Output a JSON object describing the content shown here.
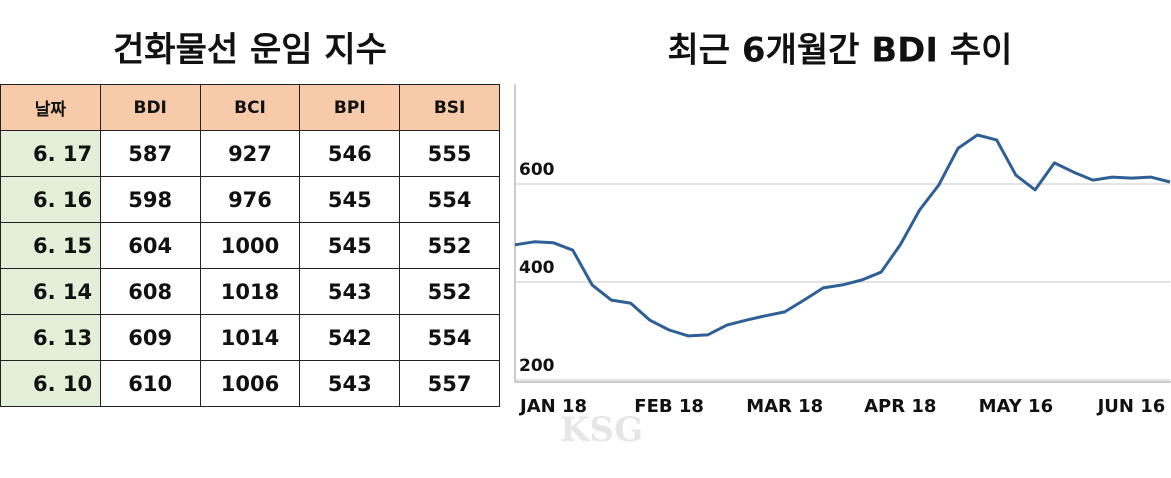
{
  "table": {
    "title": "건화물선 운임 지수",
    "header": [
      "날짜",
      "BDI",
      "BCI",
      "BPI",
      "BSI"
    ],
    "rows": [
      [
        "6. 17",
        "587",
        "927",
        "546",
        "555"
      ],
      [
        "6. 16",
        "598",
        "976",
        "545",
        "554"
      ],
      [
        "6. 15",
        "604",
        "1000",
        "545",
        "552"
      ],
      [
        "6. 14",
        "608",
        "1018",
        "543",
        "552"
      ],
      [
        "6. 13",
        "609",
        "1014",
        "542",
        "554"
      ],
      [
        "6. 10",
        "610",
        "1006",
        "543",
        "557"
      ]
    ]
  },
  "watermark": "KSG",
  "chart_data": {
    "type": "line",
    "title": "최근 6개월간 BDI 추이",
    "categories": [
      null,
      null,
      "JAN 18",
      null,
      null,
      null,
      null,
      null,
      "FEB 18",
      null,
      null,
      null,
      null,
      null,
      "MAR 18",
      null,
      null,
      null,
      null,
      null,
      "APR 18",
      null,
      null,
      null,
      null,
      null,
      "MAY 16",
      null,
      null,
      null,
      null,
      null,
      "JUN 16",
      null,
      null
    ],
    "series": [
      {
        "name": "BDI",
        "color": "#2e5f95",
        "values": [
          476,
          482,
          480,
          465,
          394,
          363,
          357,
          322,
          302,
          290,
          292,
          312,
          322,
          331,
          339,
          363,
          388,
          394,
          404,
          420,
          476,
          547,
          598,
          673,
          700,
          690,
          618,
          588,
          643,
          624,
          608,
          614,
          612,
          614,
          604
        ]
      }
    ],
    "ylim": [
      200,
      800
    ],
    "yticks": [
      200,
      400,
      600
    ],
    "grid": true
  }
}
